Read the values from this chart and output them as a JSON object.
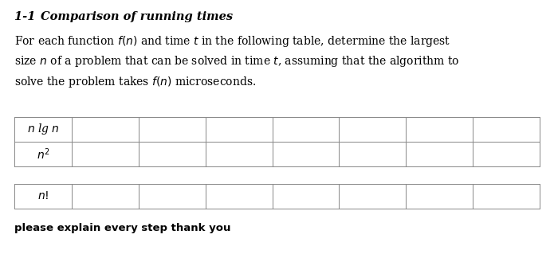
{
  "title": "1-1   Comparison of running times",
  "para_line1": "For each function $f(n)$ and time $t$ in the following table, determine the largest",
  "para_line2": "size $n$ of a problem that can be solved in time $t$, assuming that the algorithm to",
  "para_line3": "solve the problem takes $f(n)$ microseconds.",
  "row_labels_group1": [
    "n lg n",
    "n^2"
  ],
  "row_labels_group2": [
    "n!"
  ],
  "num_data_cols": 7,
  "footer": "please explain every step thank you",
  "bg_color": "#ffffff",
  "text_color": "#000000",
  "line_color": "#888888"
}
